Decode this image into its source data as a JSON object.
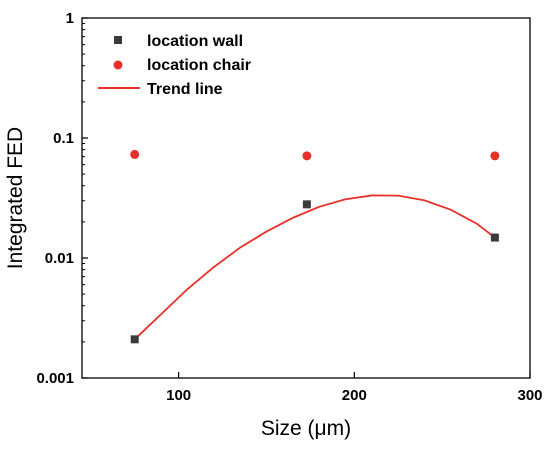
{
  "chart_data": {
    "type": "scatter",
    "xlabel": "Size (μm)",
    "ylabel": "Integrated FED",
    "xlim": [
      45,
      300
    ],
    "ylim": [
      0.001,
      1
    ],
    "yscale": "log",
    "x_ticks": [
      100,
      200,
      300
    ],
    "x_tick_labels": [
      "100",
      "200",
      "300"
    ],
    "y_ticks": [
      0.001,
      0.01,
      0.1,
      1
    ],
    "y_tick_labels": [
      "0.001",
      "0.01",
      "0.1",
      "1"
    ],
    "grid": false,
    "legend_position": "top-left",
    "series": [
      {
        "name": "location wall",
        "kind": "scatter",
        "marker": "square",
        "color": "#3b3b3b",
        "x": [
          75,
          173,
          280
        ],
        "y": [
          0.0021,
          0.028,
          0.0148
        ]
      },
      {
        "name": "location chair",
        "kind": "scatter",
        "marker": "circle",
        "color": "#e8302b",
        "x": [
          75,
          173,
          280
        ],
        "y": [
          0.073,
          0.071,
          0.071
        ]
      },
      {
        "name": "Trend line",
        "kind": "line",
        "color": "#e8302b",
        "x": [
          75,
          90,
          105,
          120,
          135,
          150,
          165,
          180,
          195,
          210,
          225,
          240,
          255,
          270,
          280
        ],
        "y": [
          0.0021,
          0.0034,
          0.0055,
          0.0084,
          0.0122,
          0.0166,
          0.0216,
          0.0267,
          0.0309,
          0.0332,
          0.0331,
          0.0302,
          0.0252,
          0.0192,
          0.0148
        ]
      }
    ]
  }
}
